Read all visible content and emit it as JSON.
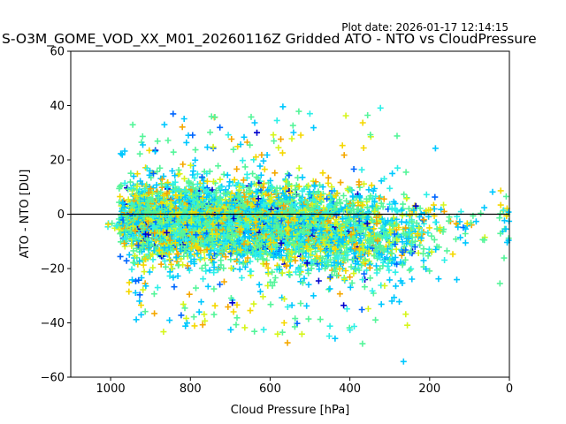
{
  "chart_data": {
    "type": "scatter",
    "plot_date": "Plot date: 2026-01-17 12:14:15",
    "title": "S-O3M_GOME_VOD_XX_M01_20260116Z Gridded ATO - NTO vs CloudPressure",
    "xlabel": "Cloud Pressure [hPa]",
    "ylabel": "ATO - NTO [DU]",
    "xlim": [
      1100,
      0
    ],
    "ylim": [
      -60,
      60
    ],
    "x_inverted": true,
    "xticks": [
      1000,
      800,
      600,
      400,
      200,
      0
    ],
    "yticks": [
      -60,
      -40,
      -20,
      0,
      20,
      40,
      60
    ],
    "reference_line_y": 0,
    "marker": "+",
    "grid": false,
    "legend": "none",
    "color_scale": [
      "#0000cd",
      "#0066ff",
      "#00c8ff",
      "#2ef0e8",
      "#55f59a",
      "#d6f51c",
      "#f5d800",
      "#f5a800"
    ],
    "density_profile": [
      {
        "pressure": 990,
        "mean": -4,
        "spread": 2,
        "count": 10
      },
      {
        "pressure": 960,
        "mean": -2,
        "spread": 9,
        "count": 120
      },
      {
        "pressure": 930,
        "mean": -2,
        "spread": 12,
        "count": 260
      },
      {
        "pressure": 900,
        "mean": -2,
        "spread": 12,
        "count": 300
      },
      {
        "pressure": 860,
        "mean": -3,
        "spread": 13,
        "count": 320
      },
      {
        "pressure": 820,
        "mean": -2,
        "spread": 13,
        "count": 330
      },
      {
        "pressure": 780,
        "mean": -2,
        "spread": 13,
        "count": 330
      },
      {
        "pressure": 740,
        "mean": -3,
        "spread": 13,
        "count": 320
      },
      {
        "pressure": 700,
        "mean": -3,
        "spread": 13,
        "count": 310
      },
      {
        "pressure": 660,
        "mean": -4,
        "spread": 13,
        "count": 300
      },
      {
        "pressure": 620,
        "mean": -4,
        "spread": 13,
        "count": 300
      },
      {
        "pressure": 580,
        "mean": -4,
        "spread": 14,
        "count": 290
      },
      {
        "pressure": 540,
        "mean": -4,
        "spread": 14,
        "count": 280
      },
      {
        "pressure": 500,
        "mean": -4,
        "spread": 14,
        "count": 260
      },
      {
        "pressure": 460,
        "mean": -5,
        "spread": 14,
        "count": 230
      },
      {
        "pressure": 420,
        "mean": -6,
        "spread": 15,
        "count": 200
      },
      {
        "pressure": 380,
        "mean": -6,
        "spread": 15,
        "count": 170
      },
      {
        "pressure": 340,
        "mean": -7,
        "spread": 15,
        "count": 140
      },
      {
        "pressure": 300,
        "mean": -8,
        "spread": 15,
        "count": 110
      },
      {
        "pressure": 260,
        "mean": -9,
        "spread": 15,
        "count": 80
      },
      {
        "pressure": 220,
        "mean": -8,
        "spread": 13,
        "count": 50
      },
      {
        "pressure": 180,
        "mean": -6,
        "spread": 10,
        "count": 25
      },
      {
        "pressure": 140,
        "mean": -3,
        "spread": 9,
        "count": 14
      },
      {
        "pressure": 100,
        "mean": -2,
        "spread": 8,
        "count": 10
      },
      {
        "pressure": 60,
        "mean": -2,
        "spread": 8,
        "count": 6
      },
      {
        "pressure": 5,
        "mean": -5,
        "spread": 12,
        "count": 40
      }
    ]
  }
}
